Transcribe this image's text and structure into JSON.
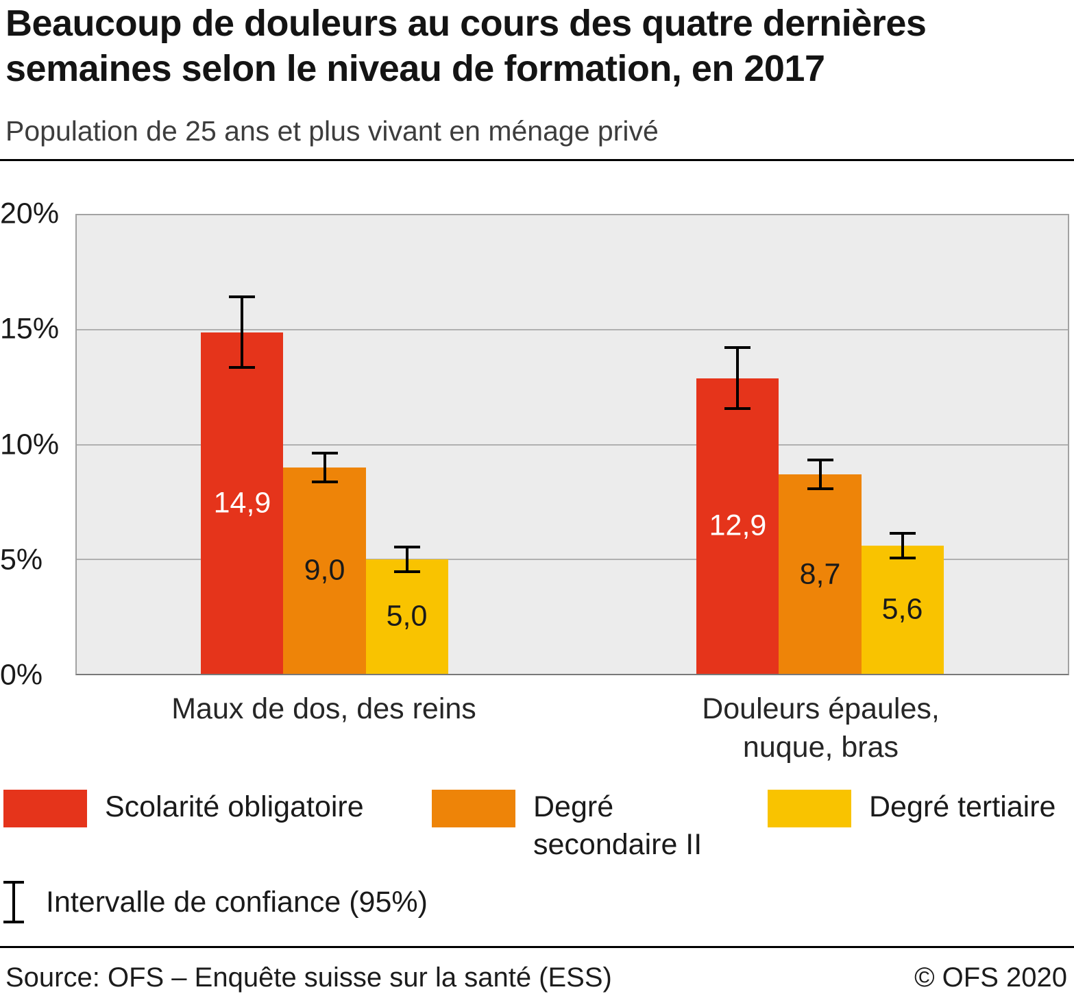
{
  "title": "Beaucoup de douleurs au cours des quatre dernières semaines selon le niveau de formation, en 2017",
  "subtitle": "Population de 25 ans et plus vivant en ménage privé",
  "legend": {
    "items": [
      {
        "label": "Scolarité obligatoire",
        "color": "#e5341b"
      },
      {
        "label": "Degré\nsecondaire II",
        "color": "#ee8408"
      },
      {
        "label": "Degré tertiaire",
        "color": "#f9c300"
      }
    ],
    "ci_label": "Intervalle de confiance (95%)"
  },
  "footer": {
    "source": "Source: OFS – Enquête suisse sur la santé (ESS)",
    "copyright": "© OFS 2020"
  },
  "chart_data": {
    "type": "bar",
    "title": "Beaucoup de douleurs au cours des quatre dernières semaines selon le niveau de formation, en 2017",
    "subtitle": "Population de 25 ans et plus vivant en ménage privé",
    "categories": [
      "Maux de dos, des reins",
      "Douleurs épaules,\nnuque, bras"
    ],
    "series": [
      {
        "name": "Scolarité obligatoire",
        "color": "#e5341b",
        "values": [
          14.9,
          12.9
        ],
        "labels": [
          "14,9",
          "12,9"
        ],
        "label_color": "#ffffff",
        "ci": [
          [
            13.3,
            16.5
          ],
          [
            11.5,
            14.3
          ]
        ]
      },
      {
        "name": "Degré secondaire II",
        "color": "#ee8408",
        "values": [
          9.0,
          8.7
        ],
        "labels": [
          "9,0",
          "8,7"
        ],
        "label_color": "#1a1a1a",
        "ci": [
          [
            8.3,
            9.7
          ],
          [
            8.0,
            9.4
          ]
        ]
      },
      {
        "name": "Degré tertiaire",
        "color": "#f9c300",
        "values": [
          5.0,
          5.6
        ],
        "labels": [
          "5,0",
          "5,6"
        ],
        "label_color": "#1a1a1a",
        "ci": [
          [
            4.4,
            5.6
          ],
          [
            5.0,
            6.2
          ]
        ]
      }
    ],
    "ylim": [
      0,
      20
    ],
    "yticks": [
      {
        "value": 0,
        "label": "0%"
      },
      {
        "value": 5,
        "label": "5%"
      },
      {
        "value": 10,
        "label": "10%"
      },
      {
        "value": 15,
        "label": "15%"
      },
      {
        "value": 20,
        "label": "20%"
      }
    ],
    "grid": true,
    "legend_position": "bottom",
    "error_bars": "95% confidence interval"
  }
}
